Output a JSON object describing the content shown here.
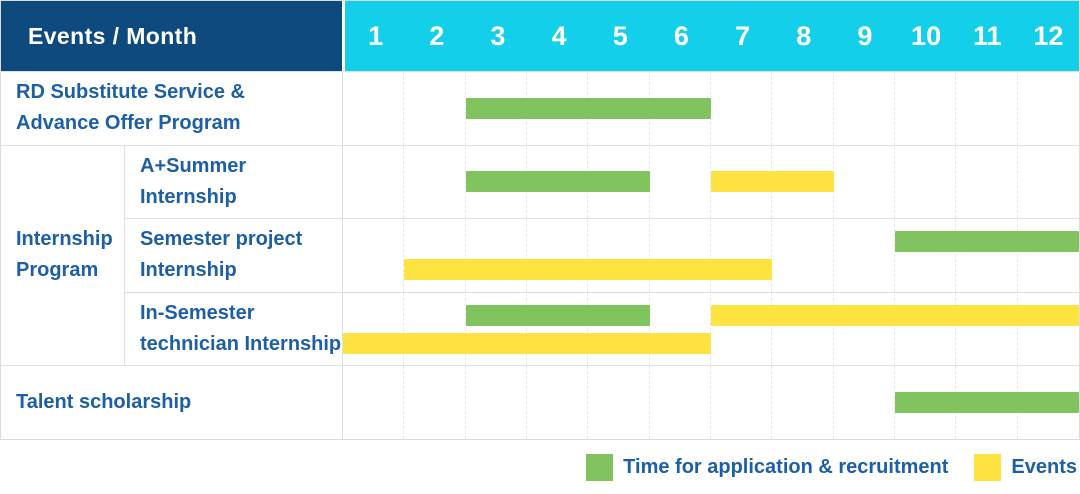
{
  "header": {
    "title": "Events / Month"
  },
  "colors": {
    "navy_header_bg": "#0E4A7D",
    "cyan_month_header_bg": "#14CFE9",
    "header_text": "#FFFFFF",
    "label_text_blue": "#1D5FA6",
    "bar_green": "#81C45F",
    "bar_yellow": "#FFE340",
    "row_border": "#DDE0E4",
    "grid_line": "#E6E8EB",
    "table_border": "#D9DCE0",
    "background": "#FFFFFF"
  },
  "chart_data": {
    "type": "bar",
    "subtype": "gantt-schedule",
    "title": "Events / Month",
    "x_axis": {
      "unit": "month",
      "ticks": [
        "1",
        "2",
        "3",
        "4",
        "5",
        "6",
        "7",
        "8",
        "9",
        "10",
        "11",
        "12"
      ],
      "range": [
        1,
        12
      ]
    },
    "grid": "dashed vertical month boundary lines, on",
    "legend_position": "bottom-right",
    "series_legend": [
      {
        "name": "Time for application & recruitment",
        "color": "#81C45F"
      },
      {
        "name": "Events",
        "color": "#FFE340"
      }
    ],
    "row_groups": [
      {
        "group_label": null,
        "rows": [
          {
            "label": "RD Substitute Service & Advance Offer Program",
            "label_lines": [
              "RD Substitute Service &",
              "Advance Offer Program"
            ],
            "bars": [
              {
                "series": "Time for application & recruitment",
                "start_month": 3,
                "end_month": 6,
                "lane": "center"
              }
            ]
          }
        ]
      },
      {
        "group_label": "Internship Program",
        "group_label_lines": [
          "Internship",
          "Program"
        ],
        "rows": [
          {
            "label": "A+Summer Internship",
            "label_lines": [
              "A+Summer",
              "Internship"
            ],
            "bars": [
              {
                "series": "Time for application & recruitment",
                "start_month": 3,
                "end_month": 5,
                "lane": "center"
              },
              {
                "series": "Events",
                "start_month": 7,
                "end_month": 8,
                "lane": "center"
              }
            ]
          },
          {
            "label": "Semester project Internship",
            "label_lines": [
              "Semester project",
              "Internship"
            ],
            "bars": [
              {
                "series": "Time for application & recruitment",
                "start_month": 10,
                "end_month": 12,
                "lane": "top"
              },
              {
                "series": "Events",
                "start_month": 2,
                "end_month": 7,
                "lane": "bottom"
              }
            ]
          },
          {
            "label": "In-Semester technician Internship",
            "label_lines": [
              "In-Semester",
              "technician Internship"
            ],
            "bars": [
              {
                "series": "Time for application & recruitment",
                "start_month": 3,
                "end_month": 5,
                "lane": "top"
              },
              {
                "series": "Events",
                "start_month": 7,
                "end_month": 12,
                "lane": "top"
              },
              {
                "series": "Events",
                "start_month": 1,
                "end_month": 6,
                "lane": "bottom"
              }
            ]
          }
        ]
      },
      {
        "group_label": null,
        "rows": [
          {
            "label": "Talent scholarship",
            "label_lines": [
              "Talent scholarship"
            ],
            "bars": [
              {
                "series": "Time for application & recruitment",
                "start_month": 10,
                "end_month": 12,
                "lane": "center"
              }
            ]
          }
        ]
      }
    ]
  }
}
